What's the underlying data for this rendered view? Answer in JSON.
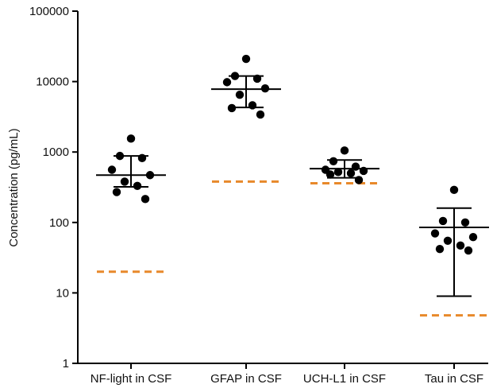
{
  "chart_data": {
    "type": "scatter",
    "title": "",
    "xlabel": "",
    "ylabel": "Concentration (pg/mL)",
    "yscale": "log",
    "ylim": [
      1,
      100000
    ],
    "yticks": [
      "1",
      "10",
      "100",
      "1000",
      "10000",
      "100000"
    ],
    "categories": [
      "NF-light in CSF",
      "GFAP in CSF",
      "UCH-L1 in CSF",
      "Tau in CSF"
    ],
    "groups": [
      {
        "category": "NF-light in CSF",
        "points": [
          1550,
          880,
          820,
          560,
          470,
          380,
          330,
          270,
          215
        ],
        "center": 470,
        "error_low": 320,
        "error_high": 880,
        "reference": 20
      },
      {
        "category": "GFAP in CSF",
        "points": [
          21000,
          12000,
          11000,
          9800,
          8000,
          6500,
          4600,
          4200,
          3400
        ],
        "center": 7800,
        "error_low": 4300,
        "error_high": 12000,
        "reference": 380
      },
      {
        "category": "UCH-L1 in CSF",
        "points": [
          1050,
          740,
          620,
          560,
          540,
          520,
          500,
          480,
          400
        ],
        "center": 580,
        "error_low": 430,
        "error_high": 770,
        "reference": 360
      },
      {
        "category": "Tau in CSF",
        "points": [
          290,
          105,
          100,
          70,
          62,
          55,
          47,
          42,
          40
        ],
        "center": 85,
        "error_low": 9,
        "error_high": 160,
        "reference": 4.8
      }
    ],
    "colors": {
      "points": "#000000",
      "error_bars": "#000000",
      "reference_line": "#E8892B",
      "axis": "#000000"
    },
    "grid": false,
    "legend": "none"
  }
}
